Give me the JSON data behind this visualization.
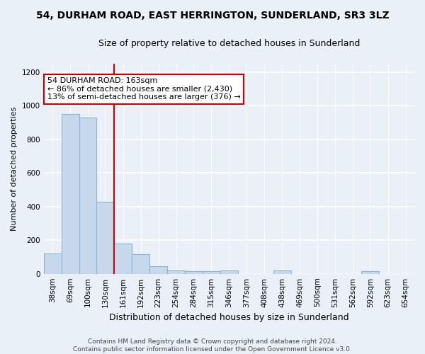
{
  "title_line1": "54, DURHAM ROAD, EAST HERRINGTON, SUNDERLAND, SR3 3LZ",
  "title_line2": "Size of property relative to detached houses in Sunderland",
  "xlabel": "Distribution of detached houses by size in Sunderland",
  "ylabel": "Number of detached properties",
  "categories": [
    "38sqm",
    "69sqm",
    "100sqm",
    "130sqm",
    "161sqm",
    "192sqm",
    "223sqm",
    "254sqm",
    "284sqm",
    "315sqm",
    "346sqm",
    "377sqm",
    "408sqm",
    "438sqm",
    "469sqm",
    "500sqm",
    "531sqm",
    "562sqm",
    "592sqm",
    "623sqm",
    "654sqm"
  ],
  "values": [
    120,
    950,
    930,
    430,
    180,
    115,
    47,
    20,
    15,
    15,
    20,
    0,
    0,
    20,
    0,
    0,
    0,
    0,
    15,
    0,
    0
  ],
  "bar_color": "#c8d8ec",
  "bar_edge_color": "#8ab4d4",
  "red_line_color": "#cc0000",
  "red_line_index": 4,
  "annotation_text": "54 DURHAM ROAD: 163sqm\n← 86% of detached houses are smaller (2,430)\n13% of semi-detached houses are larger (376) →",
  "annotation_box_facecolor": "white",
  "annotation_box_edgecolor": "#cc0000",
  "footnote": "Contains HM Land Registry data © Crown copyright and database right 2024.\nContains public sector information licensed under the Open Government Licence v3.0.",
  "ylim": [
    0,
    1250
  ],
  "yticks": [
    0,
    200,
    400,
    600,
    800,
    1000,
    1200
  ],
  "background_color": "#eaf0f8",
  "grid_color": "white",
  "title1_fontsize": 10,
  "title2_fontsize": 9,
  "ylabel_fontsize": 8,
  "xlabel_fontsize": 9,
  "tick_fontsize": 7.5,
  "annotation_fontsize": 8,
  "footnote_fontsize": 6.5
}
